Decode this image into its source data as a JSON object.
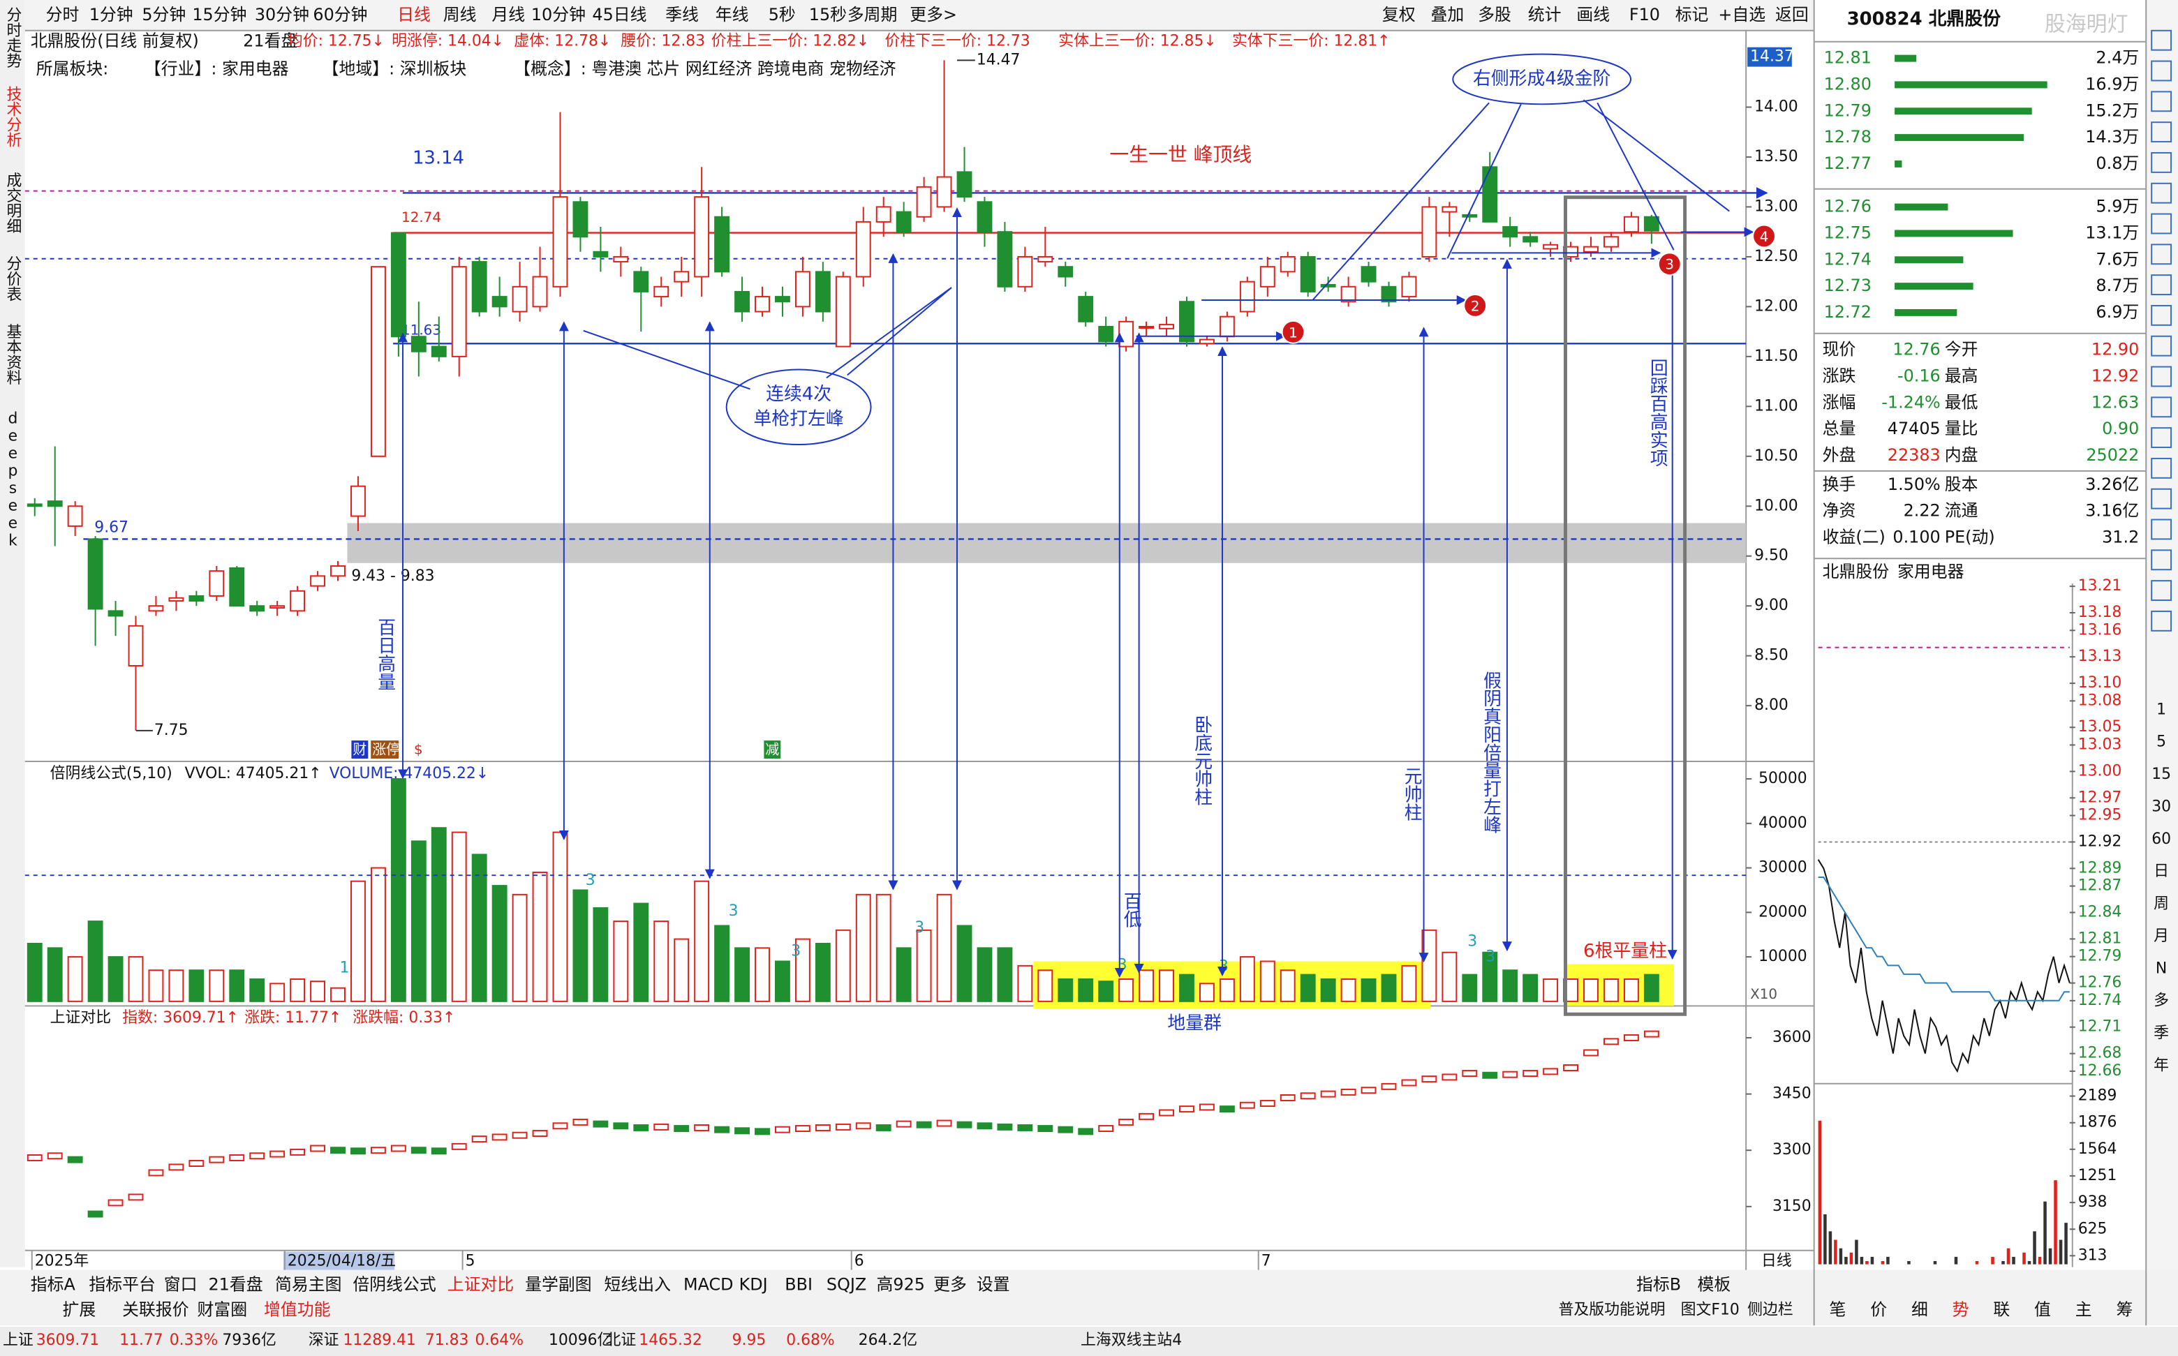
{
  "toolbar": {
    "left": [
      "分时",
      "1分钟",
      "5分钟",
      "15分钟",
      "30分钟",
      "60分钟",
      "日线",
      "周线",
      "月线",
      "10分钟",
      "45日线",
      "季线",
      "年线",
      "5秒",
      "15秒",
      "多周期",
      "更多>"
    ],
    "right": [
      "复权",
      "叠加",
      "多股",
      "统计",
      "画线",
      "F10",
      "标记",
      "+自选",
      "返回"
    ]
  },
  "side_tabs": [
    "分时走势",
    "技术分析",
    "成交明细",
    "分价表",
    "基本资料",
    "deepseek"
  ],
  "header": {
    "line1": [
      "北鼎股份(日线 前复权)",
      "21看盘",
      "均价: 12.75↓",
      "明涨停: 14.04↓",
      "虚体: 12.78↓",
      "腰价: 12.83",
      "价柱上三一价: 12.82↓",
      "价柱下三一价: 12.73",
      "实体上三一价: 12.85↓",
      "实体下三一价: 12.81↑"
    ],
    "line2": [
      "所属板块:",
      "【行业】: 家用电器",
      "【地域】: 深圳板块",
      "【概念】: 粤港澳 芯片 网红经济 跨境电商 宠物经济"
    ]
  },
  "main_chart": {
    "type": "candlestick",
    "ylim": [
      7.4,
      14.67
    ],
    "yticks": [
      {
        "value": 14,
        "label": "14.00"
      },
      {
        "value": 13.5,
        "label": "13.50"
      },
      {
        "value": 13,
        "label": "13.00"
      },
      {
        "value": 12.5,
        "label": "12.50"
      },
      {
        "value": 12,
        "label": "12.00"
      },
      {
        "value": 11.5,
        "label": "11.50"
      },
      {
        "value": 11,
        "label": "11.00"
      },
      {
        "value": 10.5,
        "label": "10.50"
      },
      {
        "value": 10,
        "label": "10.00"
      },
      {
        "value": 9.5,
        "label": "9.50"
      },
      {
        "value": 9,
        "label": "9.00"
      },
      {
        "value": 8.5,
        "label": "8.50"
      },
      {
        "value": 8,
        "label": "8.00"
      }
    ],
    "top_label": "14.37",
    "candles": [
      [
        10.02,
        10.08,
        9.9,
        10.0
      ],
      [
        10.05,
        10.6,
        9.6,
        10.0
      ],
      [
        9.8,
        10.05,
        9.7,
        10.0
      ],
      [
        9.67,
        9.7,
        8.6,
        8.97
      ],
      [
        8.95,
        9.05,
        8.7,
        8.9
      ],
      [
        8.4,
        8.9,
        7.75,
        8.8
      ],
      [
        8.95,
        9.1,
        8.9,
        9.0
      ],
      [
        9.05,
        9.15,
        8.95,
        9.08
      ],
      [
        9.1,
        9.15,
        9.0,
        9.05
      ],
      [
        9.1,
        9.4,
        9.05,
        9.35
      ],
      [
        9.38,
        9.4,
        9.0,
        9.0
      ],
      [
        9.0,
        9.05,
        8.9,
        8.95
      ],
      [
        8.98,
        9.05,
        8.9,
        9.0
      ],
      [
        8.95,
        9.2,
        8.9,
        9.15
      ],
      [
        9.2,
        9.35,
        9.15,
        9.3
      ],
      [
        9.3,
        9.45,
        9.25,
        9.4
      ],
      [
        9.9,
        10.3,
        9.75,
        10.2
      ],
      [
        10.5,
        12.4,
        10.5,
        12.4
      ],
      [
        12.74,
        12.74,
        11.5,
        11.7
      ],
      [
        11.7,
        12.05,
        11.3,
        11.55
      ],
      [
        11.6,
        11.9,
        11.45,
        11.5
      ],
      [
        11.5,
        12.5,
        11.3,
        12.4
      ],
      [
        12.45,
        12.5,
        11.9,
        11.95
      ],
      [
        12.1,
        12.3,
        11.9,
        12.0
      ],
      [
        11.95,
        12.45,
        11.85,
        12.2
      ],
      [
        12.0,
        12.6,
        11.95,
        12.3
      ],
      [
        12.2,
        13.95,
        12.1,
        13.1
      ],
      [
        13.05,
        13.1,
        12.55,
        12.7
      ],
      [
        12.55,
        12.8,
        12.35,
        12.5
      ],
      [
        12.45,
        12.6,
        12.3,
        12.5
      ],
      [
        12.35,
        12.4,
        11.75,
        12.15
      ],
      [
        12.1,
        12.3,
        12.0,
        12.2
      ],
      [
        12.25,
        12.5,
        12.1,
        12.35
      ],
      [
        12.3,
        13.4,
        12.1,
        13.1
      ],
      [
        12.9,
        13.0,
        12.3,
        12.35
      ],
      [
        12.15,
        12.3,
        11.85,
        11.95
      ],
      [
        11.95,
        12.2,
        11.9,
        12.1
      ],
      [
        12.1,
        12.2,
        11.9,
        12.05
      ],
      [
        12.0,
        12.5,
        11.9,
        12.35
      ],
      [
        12.35,
        12.45,
        11.85,
        11.95
      ],
      [
        11.6,
        12.35,
        11.6,
        12.3
      ],
      [
        12.3,
        13.0,
        12.2,
        12.85
      ],
      [
        12.85,
        13.1,
        12.7,
        13.0
      ],
      [
        12.95,
        13.05,
        12.7,
        12.75
      ],
      [
        12.9,
        13.3,
        12.85,
        13.2
      ],
      [
        13.0,
        14.47,
        12.95,
        13.3
      ],
      [
        13.35,
        13.6,
        13.05,
        13.1
      ],
      [
        13.05,
        13.1,
        12.6,
        12.75
      ],
      [
        12.75,
        12.85,
        12.15,
        12.2
      ],
      [
        12.2,
        12.6,
        12.15,
        12.5
      ],
      [
        12.45,
        12.8,
        12.4,
        12.5
      ],
      [
        12.4,
        12.45,
        12.2,
        12.3
      ],
      [
        12.1,
        12.15,
        11.8,
        11.85
      ],
      [
        11.8,
        11.9,
        11.6,
        11.65
      ],
      [
        11.6,
        11.9,
        11.55,
        11.85
      ],
      [
        11.8,
        11.85,
        11.7,
        11.8
      ],
      [
        11.78,
        11.9,
        11.7,
        11.82
      ],
      [
        12.05,
        12.1,
        11.6,
        11.65
      ],
      [
        11.63,
        11.7,
        11.6,
        11.67
      ],
      [
        11.7,
        11.95,
        11.65,
        11.9
      ],
      [
        11.95,
        12.3,
        11.9,
        12.25
      ],
      [
        12.2,
        12.5,
        12.1,
        12.4
      ],
      [
        12.35,
        12.55,
        12.3,
        12.5
      ],
      [
        12.5,
        12.55,
        12.1,
        12.15
      ],
      [
        12.22,
        12.3,
        12.15,
        12.2
      ],
      [
        12.05,
        12.3,
        12.0,
        12.2
      ],
      [
        12.4,
        12.45,
        12.2,
        12.25
      ],
      [
        12.2,
        12.25,
        12.0,
        12.05
      ],
      [
        12.1,
        12.35,
        12.05,
        12.3
      ],
      [
        12.5,
        13.1,
        12.45,
        13.0
      ],
      [
        12.95,
        13.05,
        12.7,
        13.0
      ],
      [
        12.92,
        12.95,
        12.85,
        12.9
      ],
      [
        13.4,
        13.55,
        12.85,
        12.85
      ],
      [
        12.8,
        12.9,
        12.6,
        12.7
      ],
      [
        12.7,
        12.75,
        12.6,
        12.65
      ],
      [
        12.58,
        12.65,
        12.5,
        12.62
      ],
      [
        12.5,
        12.65,
        12.45,
        12.6
      ],
      [
        12.55,
        12.7,
        12.5,
        12.6
      ],
      [
        12.6,
        12.75,
        12.55,
        12.7
      ],
      [
        12.75,
        12.95,
        12.7,
        12.9
      ],
      [
        12.9,
        12.92,
        12.63,
        12.76
      ]
    ],
    "level_lines": [
      {
        "value": 13.14,
        "color": "#1c36c8"
      },
      {
        "value": 12.74,
        "color": "#e0201a"
      },
      {
        "value": 11.63,
        "color": "#1c36c8"
      },
      {
        "value": 9.67,
        "color": "#1c36c8"
      }
    ],
    "dashed_levels": [
      {
        "value": 13.16,
        "color": "#c0208a"
      },
      {
        "value": 12.48,
        "color": "#1c36c8"
      }
    ],
    "band": {
      "low": 9.43,
      "high": 9.83,
      "label": "9.43 - 9.83"
    },
    "high_mark": 14.47,
    "low_mark": 7.75,
    "badges": [
      "财",
      "涨停",
      "$",
      "减"
    ],
    "annotations": {
      "peak_line": "一生一世 峰顶线",
      "golden_steps": "右侧形成4级金阶",
      "left_peak": [
        "连续4次",
        "单枪打左峰"
      ],
      "vol100": "百日高量",
      "marshal_low": "卧底元帅柱",
      "marshal": "元帅柱",
      "fake_yin": "假阴真阳倍量打左峰",
      "low100": "百低",
      "retrace": "回踩百高实项",
      "ground_vol": "地量群",
      "flat_vol": "6根平量柱",
      "steps": [
        "1",
        "2",
        "3",
        "4"
      ]
    }
  },
  "volume_panel": {
    "title": [
      "倍阴线公式(5,10)",
      "VVOL: 47405.21↑",
      "VOLUME: 47405.22↓"
    ],
    "ylim": [
      0,
      55000
    ],
    "yticks": [
      50000,
      40000,
      30000,
      20000,
      10000
    ],
    "scale_label": "X10",
    "values": [
      13000,
      12000,
      10000,
      18000,
      10000,
      10000,
      7000,
      7000,
      7000,
      7000,
      7000,
      5000,
      4000,
      5000,
      4500,
      3000,
      27000,
      30000,
      50000,
      36000,
      39000,
      38000,
      33000,
      26000,
      24000,
      29000,
      38000,
      25000,
      21000,
      18000,
      22000,
      18000,
      14000,
      27000,
      17000,
      12000,
      12000,
      9000,
      14000,
      13000,
      16000,
      24000,
      24000,
      12000,
      16000,
      24000,
      17000,
      12000,
      12000,
      8000,
      7000,
      5000,
      5000,
      4500,
      5000,
      7000,
      7000,
      6000,
      4000,
      5000,
      10000,
      9000,
      7000,
      6000,
      5000,
      5000,
      5000,
      6000,
      8000,
      16000,
      11000,
      6000,
      11000,
      7000,
      6000,
      5000,
      5000,
      5000,
      5000,
      5000,
      6000
    ],
    "markers": [
      "1",
      "3",
      "3",
      "3",
      "3",
      "3",
      "3",
      "3",
      "3"
    ]
  },
  "index_panel": {
    "title": [
      "上证对比",
      "指数: 3609.71↑",
      "涨跌: 11.77↑",
      "涨跌幅: 0.33↑"
    ],
    "ylim": [
      3033,
      3685
    ],
    "yticks": [
      3600,
      3450,
      3300,
      3150
    ],
    "values": [
      3280,
      3285,
      3275,
      3130,
      3160,
      3175,
      3240,
      3255,
      3265,
      3275,
      3280,
      3285,
      3290,
      3295,
      3305,
      3300,
      3298,
      3300,
      3305,
      3300,
      3298,
      3310,
      3330,
      3335,
      3340,
      3345,
      3365,
      3375,
      3370,
      3365,
      3360,
      3362,
      3358,
      3360,
      3355,
      3352,
      3350,
      3355,
      3358,
      3360,
      3362,
      3365,
      3360,
      3370,
      3368,
      3372,
      3368,
      3365,
      3362,
      3360,
      3358,
      3355,
      3350,
      3358,
      3375,
      3390,
      3400,
      3410,
      3415,
      3410,
      3420,
      3425,
      3440,
      3445,
      3450,
      3455,
      3460,
      3470,
      3480,
      3490,
      3495,
      3505,
      3500,
      3502,
      3505,
      3510,
      3520,
      3560,
      3590,
      3600,
      3610
    ]
  },
  "date_axis": {
    "labels": [
      "2025年",
      "2025/04/18/五",
      "5",
      "6",
      "7"
    ],
    "period": "日线"
  },
  "bottom_tabs": {
    "row1": [
      "指标A",
      "指标平台",
      "窗口",
      "21看盘",
      "简易主图",
      "倍阴线公式",
      "上证对比",
      "量学副图",
      "短线出入",
      "MACD",
      "KDJ",
      "BBI",
      "SQJZ",
      "高925",
      "更多",
      "设置"
    ],
    "row1_right": [
      "指标B",
      "模板"
    ],
    "row2": [
      "扩展",
      "关联报价",
      "财富圈",
      "增值功能"
    ],
    "row2_right": [
      "普及版功能说明",
      "图文F10",
      "侧边栏"
    ],
    "panel_tabs": [
      "笔",
      "价",
      "细",
      "势",
      "联",
      "值",
      "主",
      "筹"
    ]
  },
  "status": {
    "items": [
      "上证",
      "3609.71",
      "11.77",
      "0.33%",
      "7936亿",
      "深证",
      "11289.41",
      "71.83",
      "0.64%",
      "10096亿",
      "北证",
      "1465.32",
      "9.95",
      "0.68%",
      "264.2亿"
    ],
    "server": "上海双线主站4"
  },
  "quote_panel": {
    "title": "300824 北鼎股份",
    "watermark": "股海明灯",
    "asks": [
      {
        "price": "12.81",
        "volume": 2.4,
        "volume_label": "2.4万"
      },
      {
        "price": "12.80",
        "volume": 16.9,
        "volume_label": "16.9万"
      },
      {
        "price": "12.79",
        "volume": 15.2,
        "volume_label": "15.2万"
      },
      {
        "price": "12.78",
        "volume": 14.3,
        "volume_label": "14.3万"
      },
      {
        "price": "12.77",
        "volume": 0.8,
        "volume_label": "0.8万"
      }
    ],
    "bids": [
      {
        "price": "12.76",
        "volume": 5.9,
        "volume_label": "5.9万"
      },
      {
        "price": "12.75",
        "volume": 13.1,
        "volume_label": "13.1万"
      },
      {
        "price": "12.74",
        "volume": 7.6,
        "volume_label": "7.6万"
      },
      {
        "price": "12.73",
        "volume": 8.7,
        "volume_label": "8.7万"
      },
      {
        "price": "12.72",
        "volume": 6.9,
        "volume_label": "6.9万"
      }
    ],
    "stats": [
      [
        "现价",
        "12.76",
        "今开",
        "12.90"
      ],
      [
        "涨跌",
        "-0.16",
        "最高",
        "12.92"
      ],
      [
        "涨幅",
        "-1.24%",
        "最低",
        "12.63"
      ],
      [
        "总量",
        "47405",
        "量比",
        "0.90"
      ],
      [
        "外盘",
        "22383",
        "内盘",
        "25022"
      ],
      [
        "换手",
        "1.50%",
        "股本",
        "3.26亿"
      ],
      [
        "净资",
        "2.22",
        "流通",
        "3.16亿"
      ],
      [
        "收益(二)",
        "0.100",
        "PE(动)",
        "31.2"
      ]
    ],
    "sub_title": [
      "北鼎股份",
      "家用电器"
    ],
    "intraday": {
      "type": "line",
      "ylim": [
        12.655,
        13.215
      ],
      "yticks": [
        13.21,
        13.18,
        13.16,
        13.13,
        {
          "value": 13.1,
          "label": "13.10"
        },
        13.08,
        13.05,
        13.03,
        {
          "value": 13,
          "label": "13.00"
        },
        12.97,
        12.95,
        12.92,
        12.89,
        12.87,
        12.84,
        12.81,
        12.79,
        12.76,
        12.74,
        12.71,
        12.68,
        12.66
      ],
      "series": [
        {
          "color": "#111111",
          "values": [
            12.9,
            12.89,
            12.87,
            12.83,
            12.8,
            12.84,
            12.78,
            12.76,
            12.8,
            12.75,
            12.72,
            12.7,
            12.74,
            12.71,
            12.68,
            12.72,
            12.7,
            12.69,
            12.73,
            12.7,
            12.68,
            12.72,
            12.71,
            12.69,
            12.7,
            12.67,
            12.66,
            12.68,
            12.67,
            12.7,
            12.69,
            12.72,
            12.7,
            12.73,
            12.74,
            12.72,
            12.75,
            12.74,
            12.76,
            12.74,
            12.73,
            12.75,
            12.74,
            12.77,
            12.79,
            12.76,
            12.78,
            12.76
          ]
        },
        {
          "color": "#2a7fbf",
          "values": [
            12.88,
            12.88,
            12.87,
            12.86,
            12.85,
            12.84,
            12.83,
            12.82,
            12.81,
            12.8,
            12.8,
            12.79,
            12.79,
            12.78,
            12.78,
            12.78,
            12.77,
            12.77,
            12.77,
            12.77,
            12.76,
            12.76,
            12.76,
            12.76,
            12.76,
            12.75,
            12.75,
            12.75,
            12.75,
            12.75,
            12.75,
            12.75,
            12.75,
            12.74,
            12.74,
            12.74,
            12.74,
            12.74,
            12.74,
            12.74,
            12.74,
            12.74,
            12.74,
            12.74,
            12.74,
            12.74,
            12.75,
            12.75
          ]
        }
      ],
      "volume": {
        "ylim": [
          0,
          2400
        ],
        "yticks": [
          2189,
          1876,
          1564,
          1251,
          938,
          625,
          313
        ],
        "values": [
          1900,
          800,
          600,
          500,
          400,
          300,
          350,
          500,
          300,
          250,
          300,
          200,
          250,
          300,
          200,
          150,
          200,
          250,
          150,
          200,
          150,
          200,
          250,
          150,
          100,
          150,
          300,
          200,
          150,
          200,
          250,
          150,
          200,
          300,
          200,
          250,
          400,
          300,
          200,
          350,
          250,
          600,
          300,
          950,
          400,
          1200,
          500,
          700
        ]
      }
    },
    "periods": [
      "1",
      "5",
      "15",
      "30",
      "60",
      "日",
      "周",
      "月",
      "N",
      "多",
      "季",
      "年"
    ]
  }
}
